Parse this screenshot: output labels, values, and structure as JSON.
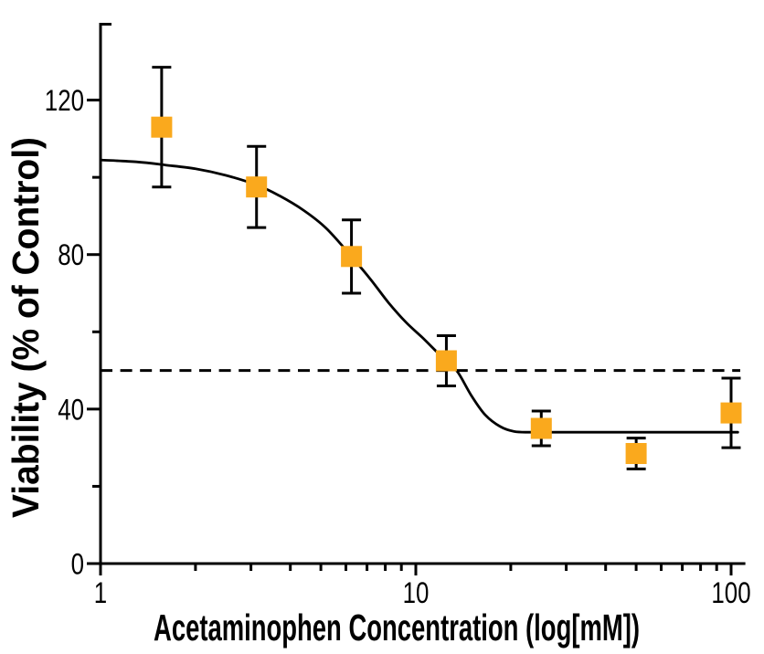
{
  "chart_data": {
    "type": "scatter",
    "subtype": "dose-response curve with error bars and sigmoidal fit",
    "title": "",
    "xlabel": "Acetaminophen Concentration (log[mM])",
    "ylabel": "Viability (% of Control)",
    "x_scale": "log",
    "y_scale": "linear",
    "xlim": [
      1,
      111
    ],
    "ylim": [
      0,
      140
    ],
    "x_major_ticks": [
      1,
      10,
      100
    ],
    "x_major_tick_labels": [
      "1",
      "10",
      "100"
    ],
    "x_minor_ticks": [
      2,
      3,
      4,
      5,
      6,
      7,
      8,
      9,
      20,
      30,
      40,
      50,
      60,
      70,
      80,
      90
    ],
    "y_major_ticks": [
      0,
      40,
      80,
      120
    ],
    "y_major_tick_labels": [
      "0",
      "40",
      "80",
      "120"
    ],
    "y_minor_ticks": [
      20,
      60,
      100
    ],
    "grid": false,
    "legend": false,
    "background_color": "#ffffff",
    "axis_color": "#000000",
    "series": [
      {
        "name": "Viability (% of Control)",
        "marker": "square",
        "marker_color": "#FAA91D",
        "marker_size_px": 23,
        "x": [
          1.5625,
          3.125,
          6.25,
          12.5,
          25,
          50,
          100
        ],
        "y": [
          113,
          97.5,
          79.5,
          52.5,
          35,
          28.5,
          39
        ],
        "y_err": [
          15.5,
          10.5,
          9.5,
          6.5,
          4.5,
          4,
          9
        ]
      }
    ],
    "fit_curve": {
      "name": "sigmoidal dose-response fit",
      "color": "#000000",
      "top_plateau": 104.5,
      "bottom_plateau": 34,
      "points": [
        [
          1,
          104.5
        ],
        [
          1.3,
          104
        ],
        [
          1.6,
          103.2
        ],
        [
          2,
          102.2
        ],
        [
          2.5,
          100.5
        ],
        [
          3.13,
          98
        ],
        [
          3.7,
          95.2
        ],
        [
          4.4,
          91.5
        ],
        [
          5.2,
          86.8
        ],
        [
          6.25,
          79.5
        ],
        [
          7.2,
          73.5
        ],
        [
          8.2,
          67.5
        ],
        [
          9.3,
          62.5
        ],
        [
          10.5,
          58.5
        ],
        [
          11.5,
          55.3
        ],
        [
          12.5,
          52.5
        ],
        [
          13.6,
          49.5
        ],
        [
          15,
          43.5
        ],
        [
          16.6,
          38.5
        ],
        [
          18.5,
          35.5
        ],
        [
          20.5,
          34.2
        ],
        [
          23,
          34
        ],
        [
          28,
          34
        ],
        [
          40,
          34
        ],
        [
          60,
          34
        ],
        [
          85,
          34
        ],
        [
          105,
          34
        ]
      ]
    },
    "reference_line": {
      "y": 50,
      "style": "dashed",
      "color": "#000000"
    }
  }
}
